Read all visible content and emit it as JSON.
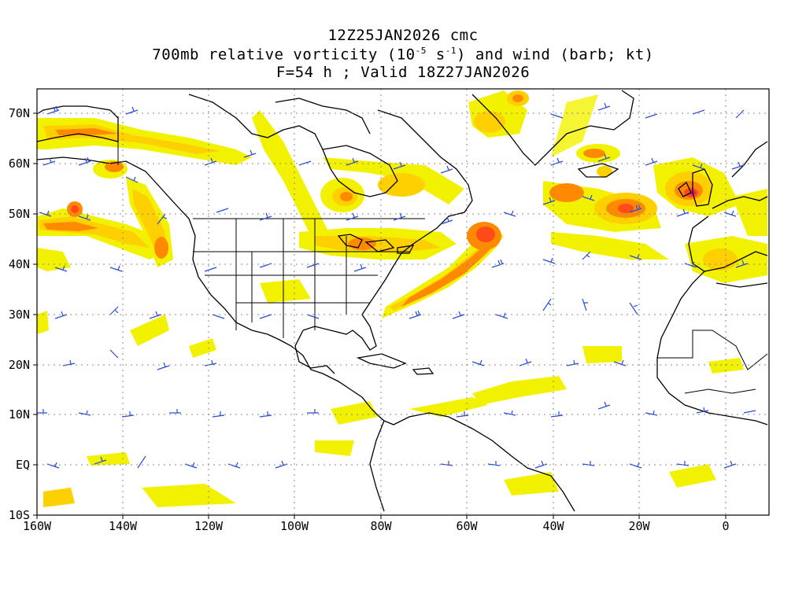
{
  "title": {
    "line1": "12Z25JAN2026 cmc",
    "line2_pre": "700mb relative vorticity (10",
    "line2_exp1": "-5",
    "line2_mid": " s",
    "line2_exp2": "-1",
    "line2_post": ") and wind (barb; kt)",
    "line3": "F=54 h ; Valid 18Z27JAN2026"
  },
  "axes": {
    "lat_labels": [
      "70N",
      "60N",
      "50N",
      "40N",
      "30N",
      "20N",
      "10N",
      "EQ",
      "10S"
    ],
    "lon_labels": [
      "160W",
      "140W",
      "120W",
      "100W",
      "80W",
      "60W",
      "40W",
      "20W",
      "0"
    ],
    "lat_values": [
      70,
      60,
      50,
      40,
      30,
      20,
      10,
      0,
      -10
    ],
    "lon_values": [
      -160,
      -140,
      -120,
      -100,
      -80,
      -60,
      -40,
      -20,
      0
    ],
    "lon_range": [
      -160,
      10
    ],
    "lat_range": [
      -10,
      75
    ],
    "grid": "dotted"
  },
  "colors": {
    "vort_low": "#f2f200",
    "vort_mid": "#ffd000",
    "vort_high": "#ff8a00",
    "vort_higher": "#ff4a1a",
    "vort_max": "#e8108a",
    "barb": "#2a4bd7",
    "coast": "#000000",
    "grid": "#888888"
  }
}
